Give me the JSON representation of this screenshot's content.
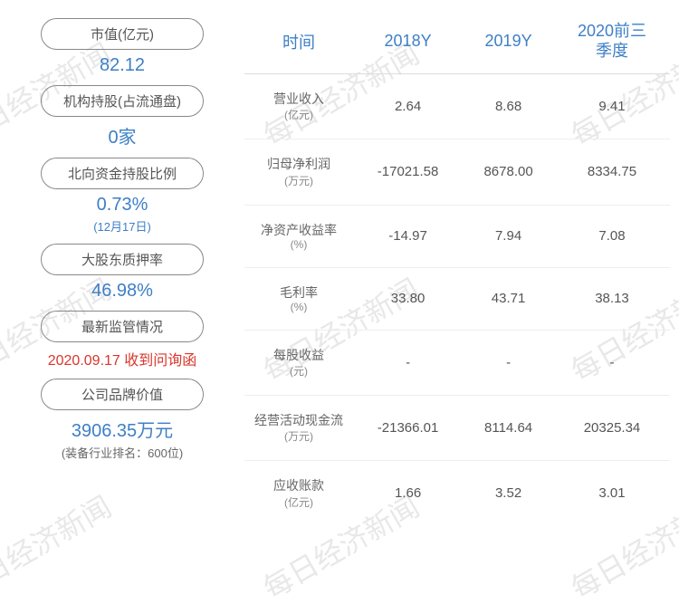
{
  "watermark_text": "每日经济新闻",
  "left_stats": [
    {
      "label": "市值(亿元)",
      "value": "82.12",
      "value_color": "#3d7fc7",
      "sub": ""
    },
    {
      "label": "机构持股(占流通盘)",
      "value": "0家",
      "value_color": "#3d7fc7",
      "sub": ""
    },
    {
      "label": "北向资金持股比例",
      "value": "0.73%",
      "value_color": "#3d7fc7",
      "sub": "(12月17日)",
      "sub_color": "#3d7fc7"
    },
    {
      "label": "大股东质押率",
      "value": "46.98%",
      "value_color": "#3d7fc7",
      "sub": ""
    },
    {
      "label": "最新监管情况",
      "value": "2020.09.17 收到问询函",
      "value_color": "#d9362b",
      "value_size": "16px",
      "sub": ""
    },
    {
      "label": "公司品牌价值",
      "value": "3906.35万元",
      "value_color": "#3d7fc7",
      "sub": "(装备行业排名：600位)"
    }
  ],
  "table": {
    "headers": [
      "时间",
      "2018Y",
      "2019Y",
      "2020前三季度"
    ],
    "header_color": "#3d7fc7",
    "rows": [
      {
        "label": "营业收入",
        "unit": "(亿元)",
        "v1": "2.64",
        "v2": "8.68",
        "v3": "9.41"
      },
      {
        "label": "归母净利润",
        "unit": "(万元)",
        "v1": "-17021.58",
        "v2": "8678.00",
        "v3": "8334.75"
      },
      {
        "label": "净资产收益率",
        "unit": "(%)",
        "v1": "-14.97",
        "v2": "7.94",
        "v3": "7.08"
      },
      {
        "label": "毛利率",
        "unit": "(%)",
        "v1": "33.80",
        "v2": "43.71",
        "v3": "38.13"
      },
      {
        "label": "每股收益",
        "unit": "(元)",
        "v1": "-",
        "v2": "-",
        "v3": "-"
      },
      {
        "label": "经营活动现金流",
        "unit": "(万元)",
        "v1": "-21366.01",
        "v2": "8114.64",
        "v3": "20325.34"
      },
      {
        "label": "应收账款",
        "unit": "(亿元)",
        "v1": "1.66",
        "v2": "3.52",
        "v3": "3.01"
      }
    ]
  },
  "colors": {
    "primary": "#3d7fc7",
    "danger": "#d9362b",
    "text": "#555",
    "border": "#888",
    "watermark": "#e8e8e8"
  }
}
